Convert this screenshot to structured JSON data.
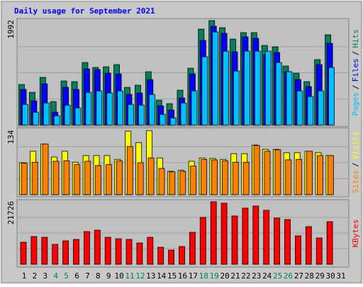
{
  "title": "Daily usage for September 2021",
  "separator": "/",
  "x_axis": {
    "categories": [
      "1",
      "2",
      "3",
      "4",
      "5",
      "6",
      "7",
      "8",
      "9",
      "10",
      "11",
      "12",
      "13",
      "14",
      "15",
      "16",
      "17",
      "18",
      "19",
      "20",
      "21",
      "22",
      "23",
      "24",
      "25",
      "26",
      "27",
      "28",
      "29",
      "30",
      "31"
    ],
    "colors": [
      "#000000",
      "#000000",
      "#000000",
      "#00805c",
      "#00805c",
      "#000000",
      "#000000",
      "#000000",
      "#000000",
      "#000000",
      "#00805c",
      "#00805c",
      "#000000",
      "#000000",
      "#000000",
      "#000000",
      "#000000",
      "#00805c",
      "#00805c",
      "#000000",
      "#000000",
      "#000000",
      "#000000",
      "#000000",
      "#00805c",
      "#00805c",
      "#000000",
      "#000000",
      "#000000",
      "#000000",
      "#000000"
    ]
  },
  "chart_data": [
    {
      "type": "bar",
      "ylim": [
        0,
        1992
      ],
      "yticks": [
        1992
      ],
      "grid": true,
      "series": [
        {
          "name": "Hits",
          "color": "#00805c",
          "values": [
            772,
            623,
            908,
            447,
            840,
            827,
            1192,
            1098,
            1111,
            1152,
            718,
            759,
            1016,
            474,
            407,
            664,
            1084,
            1829,
            1992,
            1856,
            1640,
            1762,
            1762,
            1518,
            1491,
            1125,
            989,
            827,
            1247,
            1721,
            null
          ]
        },
        {
          "name": "Files",
          "color": "#0000ff",
          "values": [
            678,
            461,
            786,
            244,
            718,
            678,
            1071,
            1057,
            989,
            976,
            583,
            610,
            867,
            366,
            285,
            515,
            976,
            1613,
            1884,
            1748,
            1396,
            1680,
            1653,
            1342,
            1382,
            1016,
            867,
            732,
            1152,
            1558,
            null
          ]
        },
        {
          "name": "Pages",
          "color": "#00c0ff",
          "values": [
            393,
            244,
            420,
            176,
            379,
            325,
            623,
            650,
            610,
            650,
            393,
            379,
            583,
            203,
            136,
            420,
            650,
            1301,
            1775,
            1409,
            1030,
            1409,
            1409,
            1409,
            1192,
            1016,
            650,
            542,
            650,
            1098,
            null
          ]
        }
      ]
    },
    {
      "type": "bar",
      "ylim": [
        0,
        134
      ],
      "yticks": [
        134
      ],
      "grid": true,
      "series": [
        {
          "name": "Visits",
          "color": "#ffff00",
          "values": [
            67,
            91,
            106,
            79,
            91,
            68,
            82,
            82,
            82,
            74,
            133,
            109,
            134,
            77,
            49,
            51,
            70,
            77,
            76,
            74,
            86,
            86,
            104,
            95,
            95,
            88,
            88,
            91,
            88,
            82,
            null
          ]
        },
        {
          "name": "Sites",
          "color": "#ff8000",
          "values": [
            66,
            68,
            106,
            70,
            71,
            63,
            70,
            61,
            63,
            71,
            101,
            67,
            77,
            55,
            48,
            49,
            60,
            74,
            73,
            71,
            68,
            68,
            103,
            91,
            94,
            73,
            74,
            91,
            82,
            82,
            null
          ]
        }
      ]
    },
    {
      "type": "bar",
      "ylim": [
        0,
        21726
      ],
      "yticks": [
        21726
      ],
      "grid": true,
      "series": [
        {
          "name": "KBytes",
          "color": "#ff0000",
          "values": [
            7654,
            9629,
            9382,
            6913,
            8147,
            8641,
            11357,
            11851,
            9382,
            8888,
            8641,
            7407,
            9382,
            5925,
            4938,
            6172,
            11110,
            16294,
            21726,
            21232,
            16788,
            19504,
            20245,
            18763,
            16048,
            15554,
            9876,
            13085,
            9135,
            14813,
            null
          ]
        }
      ]
    }
  ]
}
